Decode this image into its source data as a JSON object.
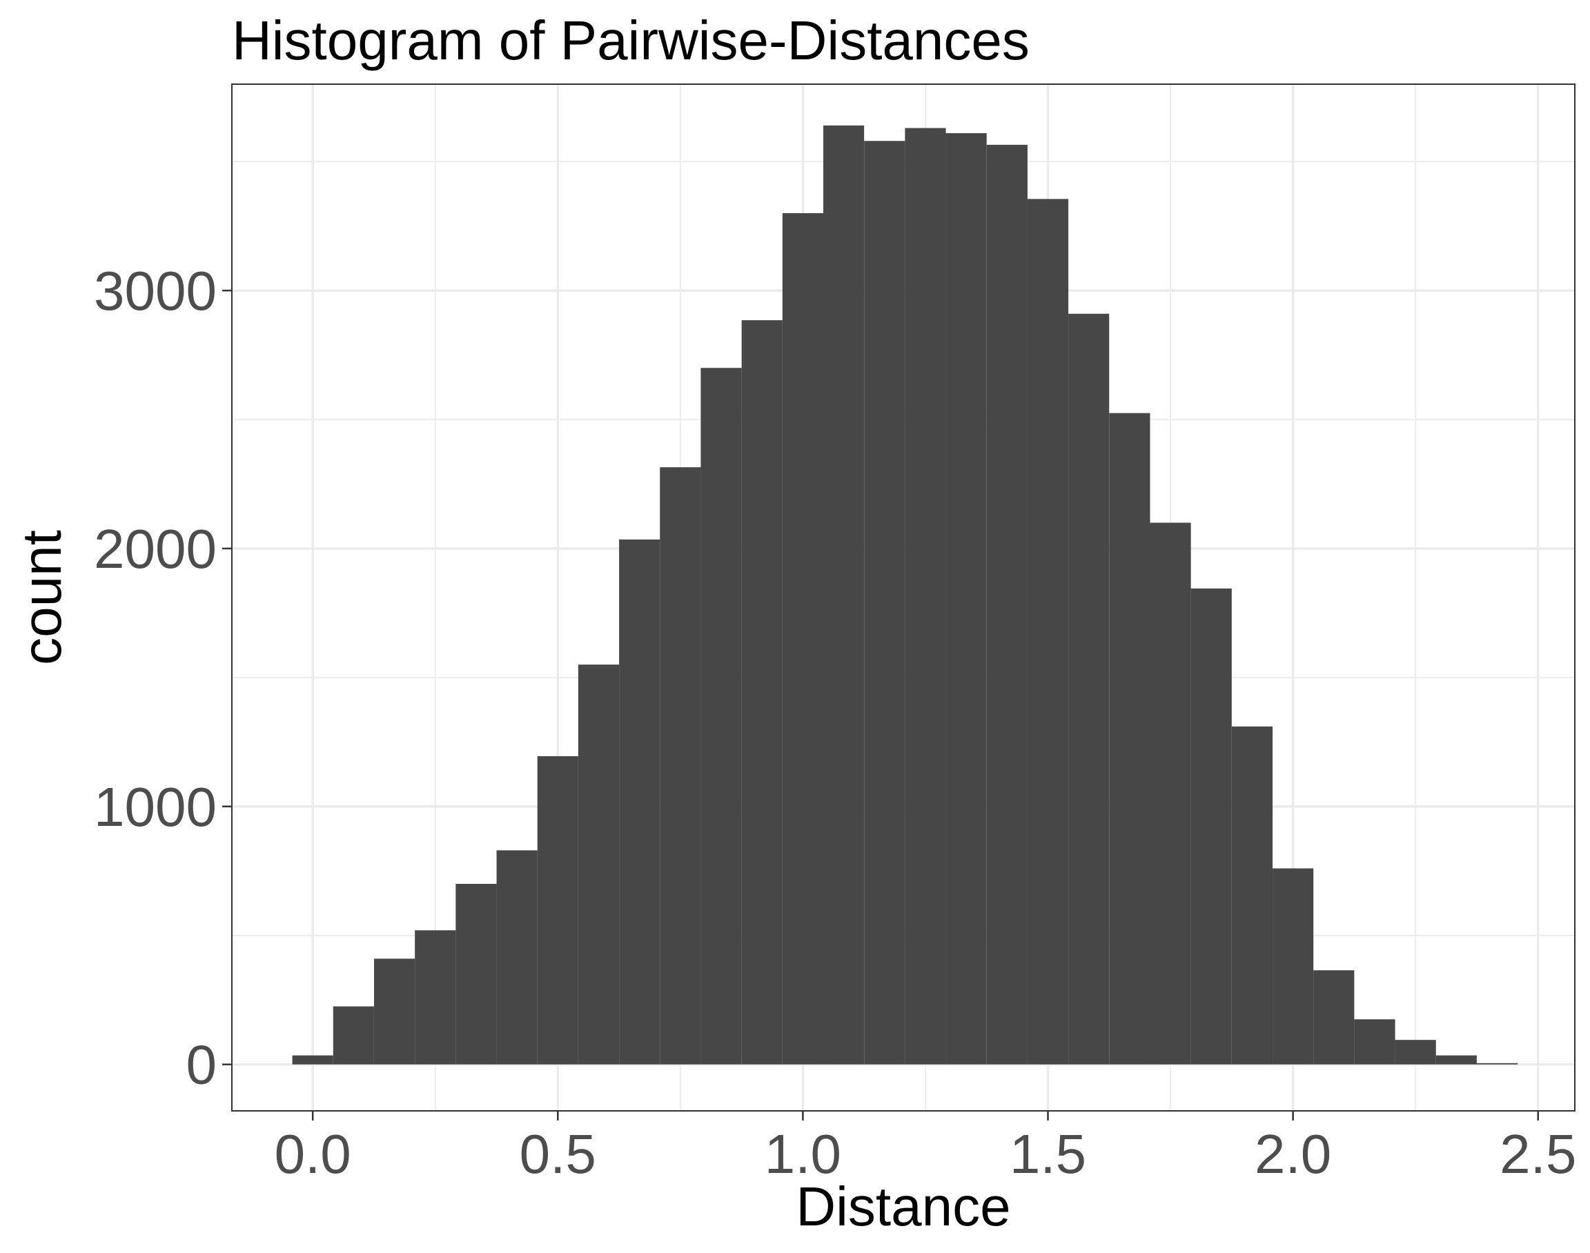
{
  "chart_data": {
    "type": "bar",
    "title": "Histogram of Pairwise-Distances",
    "xlabel": "Distance",
    "ylabel": "count",
    "xlim": [
      -0.165,
      2.575
    ],
    "ylim": [
      -180,
      3800
    ],
    "x_ticks": [
      0.0,
      0.5,
      1.0,
      1.5,
      2.0,
      2.5
    ],
    "x_tick_labels": [
      "0.0",
      "0.5",
      "1.0",
      "1.5",
      "2.0",
      "2.5"
    ],
    "y_ticks": [
      0,
      1000,
      2000,
      3000
    ],
    "y_tick_labels": [
      "0",
      "1000",
      "2000",
      "3000"
    ],
    "grid": true,
    "bar_color": "#474747",
    "bin_width": 0.0833,
    "bin_centers": [
      0.0,
      0.0833,
      0.1667,
      0.25,
      0.3333,
      0.4167,
      0.5,
      0.5833,
      0.6667,
      0.75,
      0.8333,
      0.9167,
      1.0,
      1.0833,
      1.1667,
      1.25,
      1.3333,
      1.4167,
      1.5,
      1.5833,
      1.6667,
      1.75,
      1.8333,
      1.9167,
      2.0,
      2.0833,
      2.1667,
      2.25,
      2.3333,
      2.4167
    ],
    "values": [
      35,
      225,
      410,
      520,
      700,
      830,
      1195,
      1550,
      2035,
      2315,
      2700,
      2885,
      3300,
      3640,
      3580,
      3630,
      3610,
      3565,
      3355,
      2910,
      2525,
      2100,
      1845,
      1310,
      760,
      365,
      175,
      95,
      35,
      5
    ]
  }
}
